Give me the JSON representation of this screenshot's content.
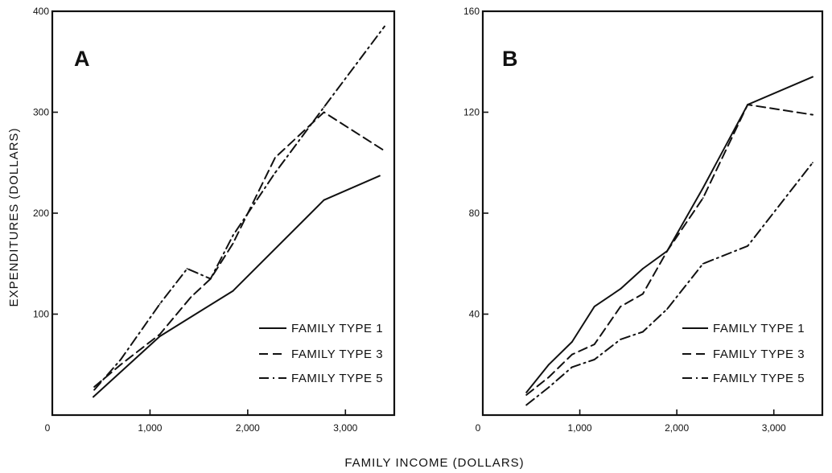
{
  "chart_data": [
    {
      "type": "line",
      "panel_label": "A",
      "x_ticks": [
        {
          "value": 0,
          "label": "0"
        },
        {
          "value": 1000,
          "label": "1,000"
        },
        {
          "value": 2000,
          "label": "2,000"
        },
        {
          "value": 3000,
          "label": "3,000"
        }
      ],
      "y_ticks": [
        {
          "value": 100,
          "label": "100"
        },
        {
          "value": 200,
          "label": "200"
        },
        {
          "value": 300,
          "label": "300"
        },
        {
          "value": 400,
          "label": "400"
        }
      ],
      "xlim": [
        0,
        3500
      ],
      "ylim": [
        0,
        400
      ],
      "series": [
        {
          "name": "FAMILY TYPE 1",
          "dash": "solid",
          "x": [
            420,
            1100,
            1850,
            2780,
            3350
          ],
          "y": [
            18,
            78,
            123,
            213,
            237
          ]
        },
        {
          "name": "FAMILY TYPE 3",
          "dash": "dashed",
          "x": [
            430,
            700,
            1100,
            1420,
            1620,
            1850,
            2280,
            2780,
            3380
          ],
          "y": [
            28,
            50,
            80,
            117,
            135,
            170,
            255,
            300,
            263
          ]
        },
        {
          "name": "FAMILY TYPE 5",
          "dash": "dashdot",
          "x": [
            430,
            700,
            1100,
            1380,
            1620,
            1850,
            2280,
            2780,
            3400
          ],
          "y": [
            25,
            55,
            110,
            145,
            135,
            178,
            240,
            305,
            385
          ]
        }
      ]
    },
    {
      "type": "line",
      "panel_label": "B",
      "x_ticks": [
        {
          "value": 0,
          "label": "0"
        },
        {
          "value": 1000,
          "label": "1,000"
        },
        {
          "value": 2000,
          "label": "2,000"
        },
        {
          "value": 3000,
          "label": "3,000"
        }
      ],
      "y_ticks": [
        {
          "value": 40,
          "label": "40"
        },
        {
          "value": 80,
          "label": "80"
        },
        {
          "value": 120,
          "label": "120"
        },
        {
          "value": 160,
          "label": "160"
        }
      ],
      "xlim": [
        0,
        3500
      ],
      "ylim": [
        0,
        160
      ],
      "series": [
        {
          "name": "FAMILY TYPE 1",
          "dash": "solid",
          "x": [
            450,
            680,
            920,
            1150,
            1420,
            1650,
            1900,
            2270,
            2730,
            3400
          ],
          "y": [
            9,
            20,
            29,
            43,
            50,
            58,
            65,
            90,
            123,
            134
          ]
        },
        {
          "name": "FAMILY TYPE 3",
          "dash": "dashed",
          "x": [
            450,
            680,
            920,
            1150,
            1420,
            1650,
            1900,
            2270,
            2730,
            3400
          ],
          "y": [
            8,
            15,
            24,
            28,
            43,
            48,
            65,
            86,
            123,
            119
          ]
        },
        {
          "name": "FAMILY TYPE 5",
          "dash": "dashdot",
          "x": [
            450,
            680,
            920,
            1150,
            1420,
            1650,
            1900,
            2270,
            2730,
            3400
          ],
          "y": [
            4,
            11,
            19,
            22,
            30,
            33,
            42,
            60,
            67,
            100
          ]
        }
      ]
    }
  ],
  "y_axis_title": "EXPENDITURES (DOLLARS)",
  "x_axis_title": "FAMILY INCOME (DOLLARS)"
}
